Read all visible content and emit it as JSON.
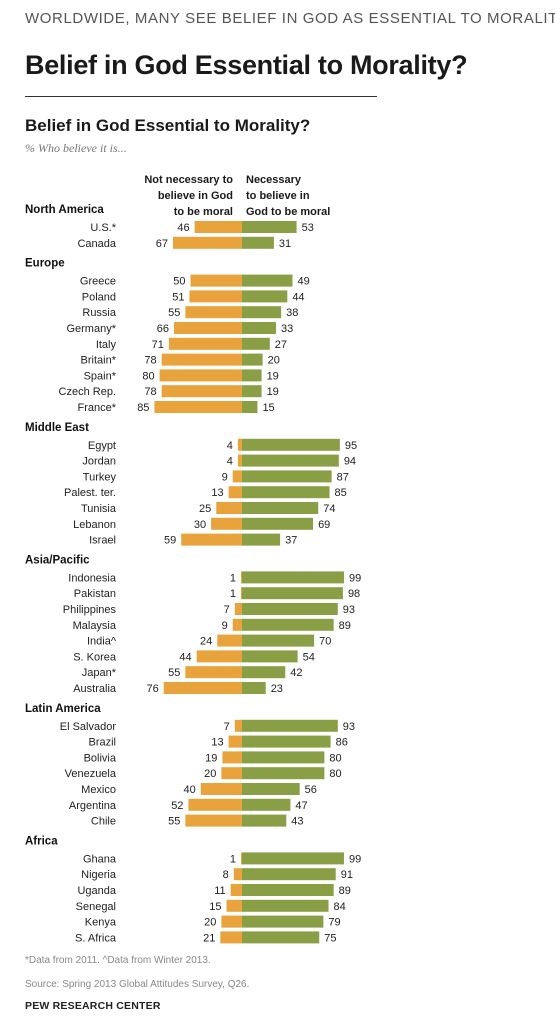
{
  "header": {
    "kicker": "WORLDWIDE, MANY SEE BELIEF IN GOD AS ESSENTIAL TO MORALITY",
    "headline": "Belief in God Essential to Morality?"
  },
  "footer": {
    "note": "*Data from 2011. ^Data from Winter 2013.",
    "source": "Source: Spring 2013 Global Attitudes Survey, Q26.",
    "brand": "PEW RESEARCH CENTER"
  },
  "chart_data": {
    "type": "bar",
    "orientation": "horizontal-diverging",
    "title": "Belief in God Essential to Morality?",
    "subtitle": "% Who believe it is...",
    "series": [
      {
        "name": "Not necessary to believe in God to be moral",
        "color": "#E8A33C"
      },
      {
        "name": "Necessary to believe in God to be moral",
        "color": "#8A9E46"
      }
    ],
    "groups": [
      {
        "region": "North America",
        "rows": [
          {
            "country": "U.S.*",
            "not_necessary": 46,
            "necessary": 53
          },
          {
            "country": "Canada",
            "not_necessary": 67,
            "necessary": 31
          }
        ]
      },
      {
        "region": "Europe",
        "rows": [
          {
            "country": "Greece",
            "not_necessary": 50,
            "necessary": 49
          },
          {
            "country": "Poland",
            "not_necessary": 51,
            "necessary": 44
          },
          {
            "country": "Russia",
            "not_necessary": 55,
            "necessary": 38
          },
          {
            "country": "Germany*",
            "not_necessary": 66,
            "necessary": 33
          },
          {
            "country": "Italy",
            "not_necessary": 71,
            "necessary": 27
          },
          {
            "country": "Britain*",
            "not_necessary": 78,
            "necessary": 20
          },
          {
            "country": "Spain*",
            "not_necessary": 80,
            "necessary": 19
          },
          {
            "country": "Czech Rep.",
            "not_necessary": 78,
            "necessary": 19
          },
          {
            "country": "France*",
            "not_necessary": 85,
            "necessary": 15
          }
        ]
      },
      {
        "region": "Middle East",
        "rows": [
          {
            "country": "Egypt",
            "not_necessary": 4,
            "necessary": 95
          },
          {
            "country": "Jordan",
            "not_necessary": 4,
            "necessary": 94
          },
          {
            "country": "Turkey",
            "not_necessary": 9,
            "necessary": 87
          },
          {
            "country": "Palest. ter.",
            "not_necessary": 13,
            "necessary": 85
          },
          {
            "country": "Tunisia",
            "not_necessary": 25,
            "necessary": 74
          },
          {
            "country": "Lebanon",
            "not_necessary": 30,
            "necessary": 69
          },
          {
            "country": "Israel",
            "not_necessary": 59,
            "necessary": 37
          }
        ]
      },
      {
        "region": "Asia/Pacific",
        "rows": [
          {
            "country": "Indonesia",
            "not_necessary": 1,
            "necessary": 99
          },
          {
            "country": "Pakistan",
            "not_necessary": 1,
            "necessary": 98
          },
          {
            "country": "Philippines",
            "not_necessary": 7,
            "necessary": 93
          },
          {
            "country": "Malaysia",
            "not_necessary": 9,
            "necessary": 89
          },
          {
            "country": "India^",
            "not_necessary": 24,
            "necessary": 70
          },
          {
            "country": "S. Korea",
            "not_necessary": 44,
            "necessary": 54
          },
          {
            "country": "Japan*",
            "not_necessary": 55,
            "necessary": 42
          },
          {
            "country": "Australia",
            "not_necessary": 76,
            "necessary": 23
          }
        ]
      },
      {
        "region": "Latin America",
        "rows": [
          {
            "country": "El Salvador",
            "not_necessary": 7,
            "necessary": 93
          },
          {
            "country": "Brazil",
            "not_necessary": 13,
            "necessary": 86
          },
          {
            "country": "Bolivia",
            "not_necessary": 19,
            "necessary": 80
          },
          {
            "country": "Venezuela",
            "not_necessary": 20,
            "necessary": 80
          },
          {
            "country": "Mexico",
            "not_necessary": 40,
            "necessary": 56
          },
          {
            "country": "Argentina",
            "not_necessary": 52,
            "necessary": 47
          },
          {
            "country": "Chile",
            "not_necessary": 55,
            "necessary": 43
          }
        ]
      },
      {
        "region": "Africa",
        "rows": [
          {
            "country": "Ghana",
            "not_necessary": 1,
            "necessary": 99
          },
          {
            "country": "Nigeria",
            "not_necessary": 8,
            "necessary": 91
          },
          {
            "country": "Uganda",
            "not_necessary": 11,
            "necessary": 89
          },
          {
            "country": "Senegal",
            "not_necessary": 15,
            "necessary": 84
          },
          {
            "country": "Kenya",
            "not_necessary": 20,
            "necessary": 79
          },
          {
            "country": "S. Africa",
            "not_necessary": 21,
            "necessary": 75
          }
        ]
      }
    ]
  }
}
